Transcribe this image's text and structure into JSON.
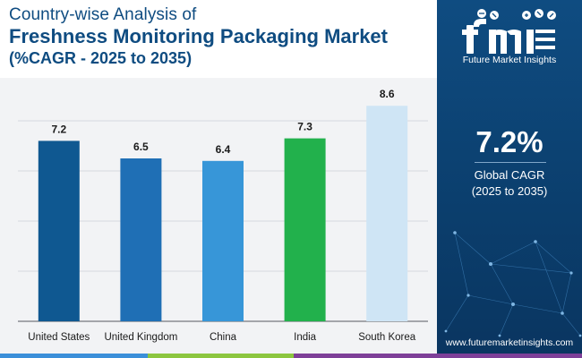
{
  "header": {
    "line1": "Country-wise Analysis of",
    "line2": "Freshness Monitoring Packaging Market",
    "line3": "(%CAGR - 2025 to 2035)"
  },
  "chart_data": {
    "type": "bar",
    "categories": [
      "United States",
      "United Kingdom",
      "China",
      "India",
      "South Korea"
    ],
    "values": [
      7.2,
      6.5,
      6.4,
      7.3,
      8.6
    ],
    "bar_colors": [
      "#0f5891",
      "#1f6fb5",
      "#3796d8",
      "#22b14c",
      "#cfe5f5"
    ],
    "ylim": [
      0,
      10
    ],
    "grid": true,
    "title": "",
    "xlabel": "",
    "ylabel": ""
  },
  "sidebar": {
    "logo_mark": "fmi",
    "logo_name": "Future Market Insights",
    "cagr_value": "7.2%",
    "cagr_label_line1": "Global CAGR",
    "cagr_label_line2": "(2025 to 2035)",
    "website": "www.futuremarketinsights.com"
  },
  "colors": {
    "primary": "#0f4c81",
    "bottom_bar": [
      "#3b8fd9",
      "#8cc63f",
      "#7e3f98"
    ]
  }
}
